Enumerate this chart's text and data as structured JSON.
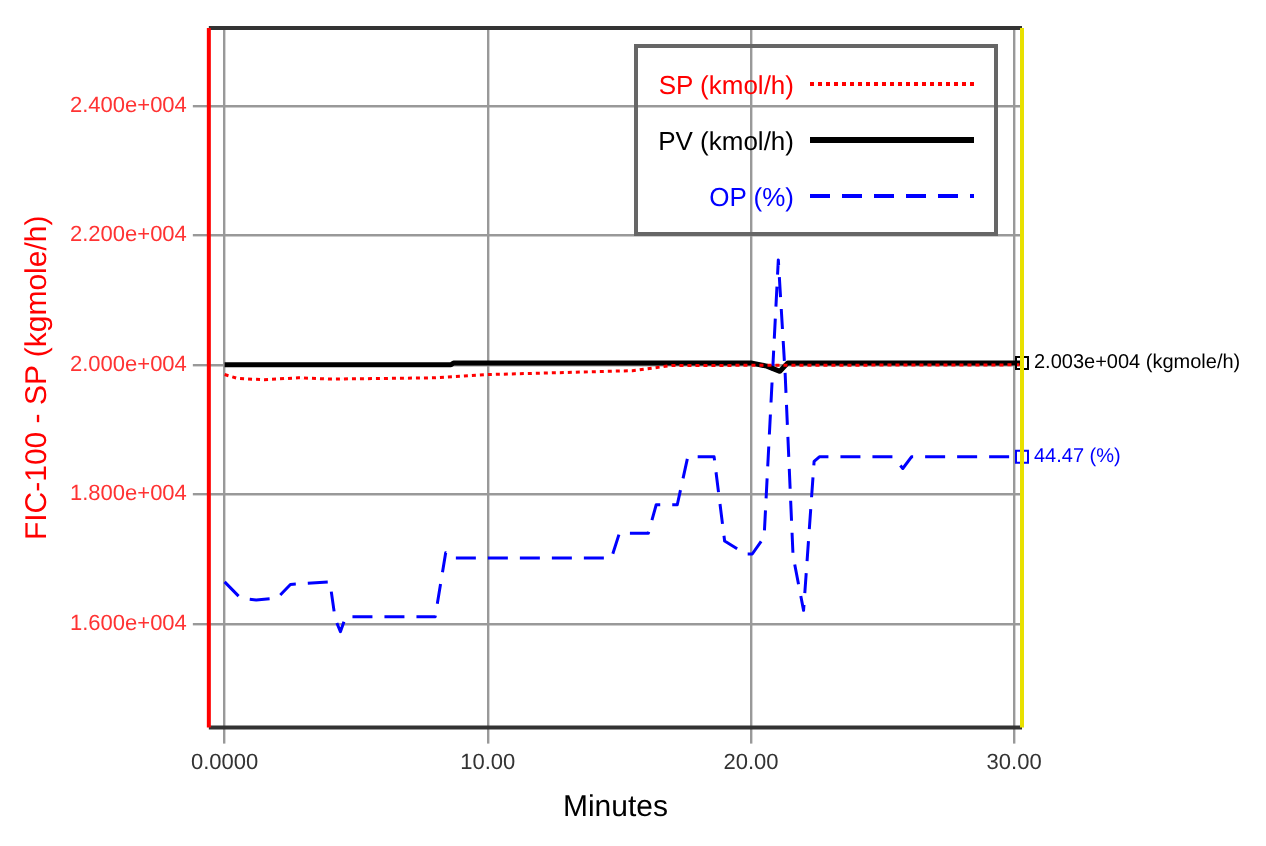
{
  "chart_data": {
    "type": "line",
    "xlabel": "Minutes",
    "ylabel": "FIC-100 - SP (kgmole/h)",
    "xlim": [
      -0.6,
      30.3
    ],
    "xticks": [
      {
        "value": 0,
        "label": "0.0000"
      },
      {
        "value": 10,
        "label": "10.00"
      },
      {
        "value": 20,
        "label": "20.00"
      },
      {
        "value": 30,
        "label": "30.00"
      }
    ],
    "ylim": [
      14400,
      25200
    ],
    "yticks": [
      {
        "value": 16000,
        "label": "1.600e+004"
      },
      {
        "value": 18000,
        "label": "1.800e+004"
      },
      {
        "value": 20000,
        "label": "2.000e+004"
      },
      {
        "value": 22000,
        "label": "2.200e+004"
      },
      {
        "value": 24000,
        "label": "2.400e+004"
      }
    ],
    "grid": true,
    "legend": "top right",
    "marker": "none",
    "series": [
      {
        "name": "SP (kmol/h)",
        "color": "#ff0000",
        "line_style": "dotted",
        "x": [
          0,
          0.5,
          1.5,
          2.8,
          4.0,
          8.0,
          10.0,
          15.5,
          17.0,
          30.3
        ],
        "values": [
          19850,
          19790,
          19770,
          19800,
          19780,
          19800,
          19850,
          19910,
          19990,
          20000
        ]
      },
      {
        "name": "PV (kmol/h)",
        "color": "#000000",
        "line_style": "solid",
        "x": [
          0,
          8.6,
          8.7,
          20.0,
          20.6,
          21.1,
          21.4,
          30.3
        ],
        "values": [
          20000,
          20000,
          20030,
          20030,
          19980,
          19900,
          20030,
          20030
        ]
      },
      {
        "name": "OP (%)",
        "color": "#0000ff",
        "line_style": "dashed",
        "x": [
          0,
          0.6,
          1.2,
          2.0,
          2.5,
          4.0,
          4.2,
          4.4,
          4.6,
          8.0,
          8.4,
          8.6,
          14.7,
          15.0,
          16.1,
          16.4,
          17.2,
          17.6,
          18.6,
          19.0,
          19.8,
          20.05,
          20.5,
          21.04,
          21.3,
          21.6,
          22.0,
          22.4,
          22.6,
          25.4,
          25.77,
          26.1,
          30.3
        ],
        "values": [
          16650,
          16400,
          16370,
          16400,
          16610,
          16650,
          16080,
          15880,
          16110,
          16110,
          17100,
          17020,
          17020,
          17400,
          17400,
          17840,
          17840,
          18580,
          18580,
          17280,
          17080,
          17080,
          17340,
          21620,
          19860,
          17050,
          16210,
          18510,
          18580,
          18580,
          18400,
          18580,
          18580
        ]
      }
    ],
    "annotations": [
      {
        "text": "2.003e+004 (kgmole/h)",
        "x": 30.3,
        "y": 20030
      },
      {
        "text": "44.47 (%)",
        "x": 30.3,
        "y": 18580
      }
    ]
  }
}
